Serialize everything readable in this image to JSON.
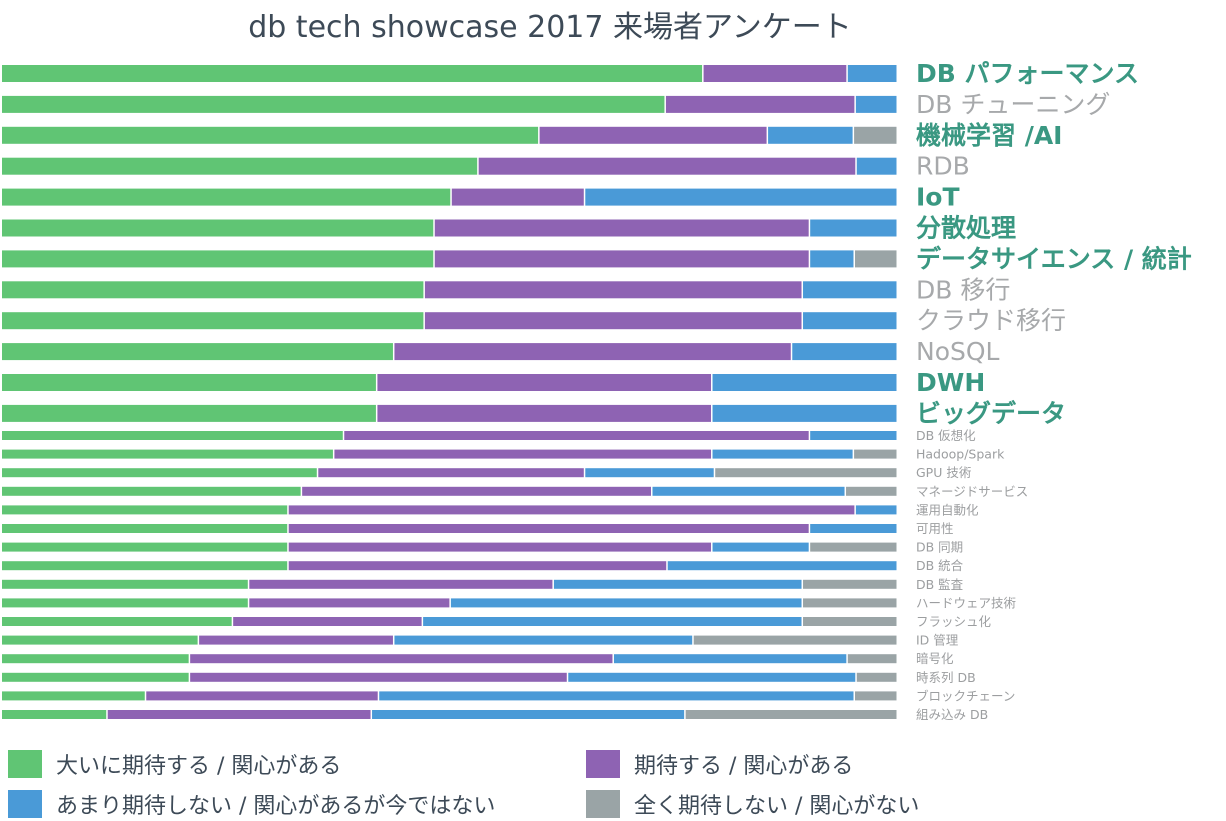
{
  "chart_data": {
    "type": "bar",
    "stacked": true,
    "orientation": "horizontal",
    "normalized": true,
    "title": "db tech showcase 2017 来場者アンケート",
    "colors": {
      "series": [
        "#60c574",
        "#8e63b3",
        "#4a9ad7",
        "#9aa4a6"
      ],
      "highlight_label": "#3a9882",
      "normal_label": "#a7a9ab",
      "small_label": "#9c9ea0"
    },
    "series": [
      {
        "name": "大いに期待する / 関心がある"
      },
      {
        "name": "期待する / 関心がある"
      },
      {
        "name": "あまり期待しない / 関心があるが今ではない"
      },
      {
        "name": "全く期待しない / 関心がない"
      }
    ],
    "categories": [
      {
        "label": "DB パフォーマンス",
        "style": "highlight",
        "values": [
          78.3,
          16.1,
          5.6,
          0
        ]
      },
      {
        "label": "DB チューニング",
        "style": "normal",
        "values": [
          74.1,
          21.2,
          4.7,
          0
        ]
      },
      {
        "label": "機械学習 /AI",
        "style": "highlight",
        "values": [
          60.0,
          25.5,
          9.6,
          4.9
        ]
      },
      {
        "label": "RDB",
        "style": "normal",
        "values": [
          53.2,
          42.2,
          4.6,
          0
        ]
      },
      {
        "label": "IoT",
        "style": "highlight",
        "values": [
          50.2,
          14.9,
          34.9,
          0
        ]
      },
      {
        "label": "分散処理",
        "style": "highlight",
        "values": [
          48.3,
          41.9,
          9.8,
          0
        ]
      },
      {
        "label": "データサイエンス / 統計",
        "style": "highlight",
        "values": [
          48.3,
          41.9,
          5.0,
          4.8
        ]
      },
      {
        "label": "DB 移行",
        "style": "normal",
        "values": [
          47.2,
          42.2,
          10.6,
          0
        ]
      },
      {
        "label": "クラウド移行",
        "style": "normal",
        "values": [
          47.2,
          42.2,
          10.6,
          0
        ]
      },
      {
        "label": "NoSQL",
        "style": "normal",
        "values": [
          43.8,
          44.4,
          11.8,
          0
        ]
      },
      {
        "label": "DWH",
        "style": "highlight",
        "values": [
          41.9,
          37.4,
          20.7,
          0
        ]
      },
      {
        "label": "ビッグデータ",
        "style": "highlight",
        "values": [
          41.9,
          37.4,
          20.7,
          0
        ]
      },
      {
        "label": "DB 仮想化",
        "style": "small",
        "values": [
          38.2,
          52.0,
          9.8,
          0
        ]
      },
      {
        "label": "Hadoop/Spark",
        "style": "small",
        "values": [
          37.1,
          42.2,
          15.8,
          4.9
        ]
      },
      {
        "label": "GPU 技術",
        "style": "small",
        "values": [
          35.3,
          29.8,
          14.5,
          20.4
        ]
      },
      {
        "label": "マネージドサービス",
        "style": "small",
        "values": [
          33.5,
          39.1,
          21.6,
          5.8
        ]
      },
      {
        "label": "運用自動化",
        "style": "small",
        "values": [
          32.0,
          63.3,
          4.7,
          0
        ]
      },
      {
        "label": "可用性",
        "style": "small",
        "values": [
          32.0,
          58.2,
          9.8,
          0
        ]
      },
      {
        "label": "DB 同期",
        "style": "small",
        "values": [
          32.0,
          47.3,
          10.9,
          9.8
        ]
      },
      {
        "label": "DB 統合",
        "style": "small",
        "values": [
          32.0,
          42.3,
          25.7,
          0
        ]
      },
      {
        "label": "DB 監査",
        "style": "small",
        "values": [
          27.6,
          34.0,
          27.8,
          10.6
        ]
      },
      {
        "label": "ハードウェア技術",
        "style": "small",
        "values": [
          27.6,
          22.5,
          39.3,
          10.6
        ]
      },
      {
        "label": "フラッシュ化",
        "style": "small",
        "values": [
          25.8,
          21.2,
          42.4,
          10.6
        ]
      },
      {
        "label": "ID 管理",
        "style": "small",
        "values": [
          22.0,
          21.8,
          33.4,
          22.8
        ]
      },
      {
        "label": "暗号化",
        "style": "small",
        "values": [
          21.0,
          47.3,
          26.1,
          5.6
        ]
      },
      {
        "label": "時系列 DB",
        "style": "small",
        "values": [
          21.0,
          42.2,
          32.2,
          4.6
        ]
      },
      {
        "label": "ブロックチェーン",
        "style": "small",
        "values": [
          16.1,
          26.0,
          53.1,
          4.8
        ]
      },
      {
        "label": "組み込み DB",
        "style": "small",
        "values": [
          11.8,
          29.5,
          35.0,
          23.7
        ]
      }
    ]
  }
}
